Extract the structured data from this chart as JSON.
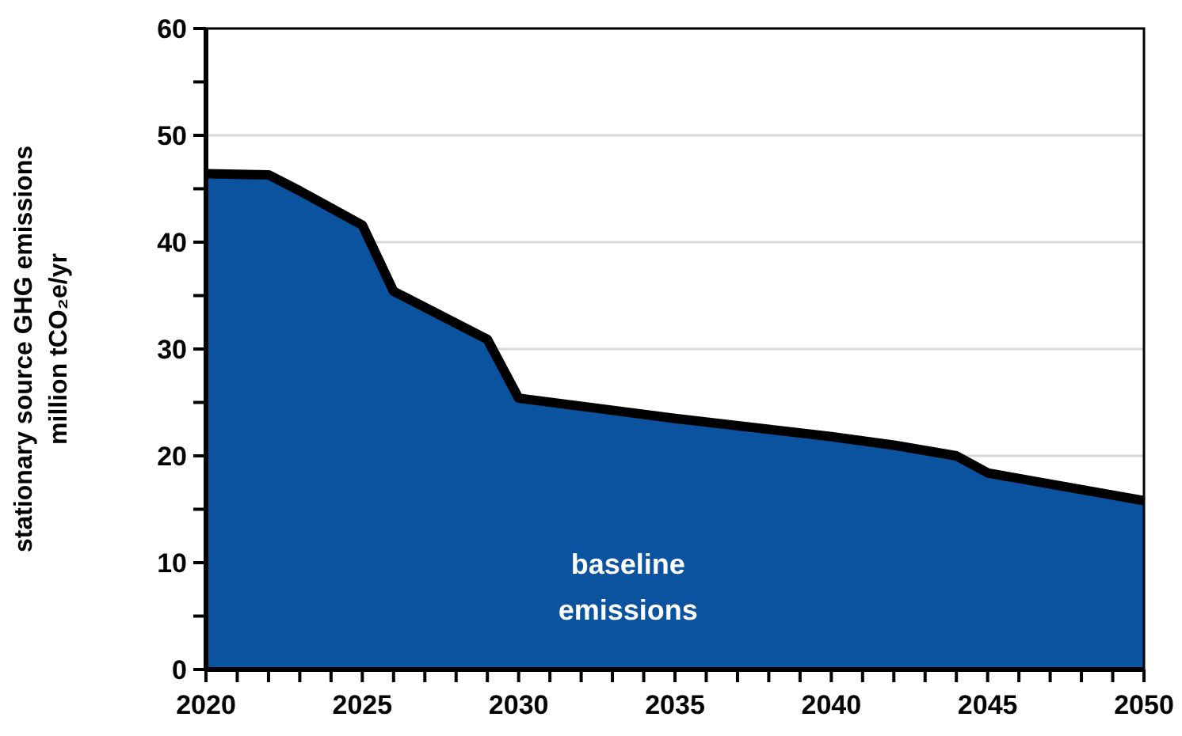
{
  "chart_data": {
    "type": "area",
    "ylabel": "stationary source GHG emissions\nmillion tCO₂e/yr",
    "x": [
      2020,
      2022,
      2023,
      2025,
      2026,
      2029,
      2030,
      2035,
      2040,
      2042,
      2044,
      2045,
      2050
    ],
    "series": [
      {
        "color": "#0b529f",
        "values": [
          46.4,
          46.3,
          44.8,
          41.6,
          35.4,
          30.9,
          25.4,
          23.5,
          21.8,
          21.0,
          20.0,
          18.4,
          15.8
        ]
      }
    ],
    "xlim": [
      2020,
      2050
    ],
    "xticks": [
      2020,
      {
        "value": 2021,
        "label": null
      },
      {
        "value": 2022,
        "label": null
      },
      {
        "value": 2023,
        "label": null
      },
      {
        "value": 2024,
        "label": null
      },
      2025,
      {
        "value": 2026,
        "label": null
      },
      {
        "value": 2027,
        "label": null
      },
      {
        "value": 2028,
        "label": null
      },
      {
        "value": 2029,
        "label": null
      },
      2030,
      {
        "value": 2031,
        "label": null
      },
      {
        "value": 2032,
        "label": null
      },
      {
        "value": 2033,
        "label": null
      },
      {
        "value": 2034,
        "label": null
      },
      2035,
      {
        "value": 2036,
        "label": null
      },
      {
        "value": 2037,
        "label": null
      },
      {
        "value": 2038,
        "label": null
      },
      {
        "value": 2039,
        "label": null
      },
      2040,
      {
        "value": 2041,
        "label": null
      },
      {
        "value": 2042,
        "label": null
      },
      {
        "value": 2043,
        "label": null
      },
      {
        "value": 2044,
        "label": null
      },
      2045,
      {
        "value": 2046,
        "label": null
      },
      {
        "value": 2047,
        "label": null
      },
      {
        "value": 2048,
        "label": null
      },
      {
        "value": 2049,
        "label": null
      },
      2050
    ],
    "ylim": [
      0,
      60
    ],
    "yticks": [
      0,
      {
        "value": 5,
        "label": null
      },
      10,
      {
        "value": 15,
        "label": null
      },
      20,
      {
        "value": 25,
        "label": null
      },
      30,
      {
        "value": 35,
        "label": null
      },
      40,
      {
        "value": 45,
        "label": null
      },
      50,
      {
        "value": 55,
        "label": null
      },
      60
    ],
    "grid": "y",
    "annotations": [
      "baseline\nemissions"
    ]
  }
}
